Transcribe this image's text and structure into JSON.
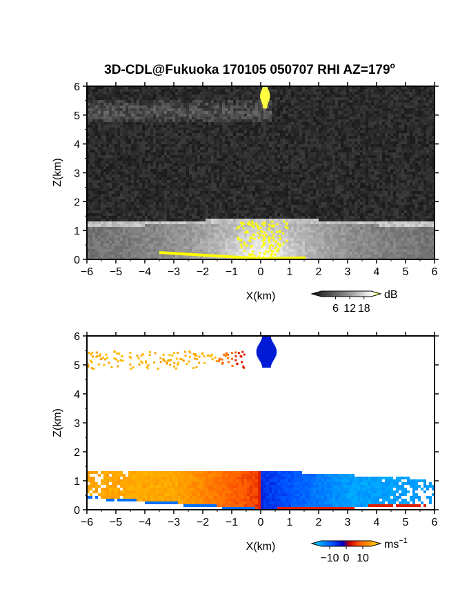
{
  "title": "3D-CDL@Fukuoka 170105 050707 RHI AZ=179",
  "title_superscript": "o",
  "chart_data": [
    {
      "type": "heatmap",
      "name": "backscatter",
      "xlabel": "X(km)",
      "ylabel": "Z(km)",
      "xlim": [
        -6,
        6
      ],
      "ylim": [
        0,
        6
      ],
      "xticks": [
        "-6",
        "-5",
        "-4",
        "-3",
        "-2",
        "-1",
        "0",
        "1",
        "2",
        "3",
        "4",
        "5",
        "6"
      ],
      "yticks": [
        "0",
        "1",
        "2",
        "3",
        "4",
        "5",
        "6"
      ],
      "colorbar": {
        "unit": "dB",
        "ticks": [
          "6",
          "12",
          "18"
        ],
        "values": [
          6,
          12,
          18
        ],
        "range": [
          0,
          21
        ]
      },
      "features": [
        {
          "kind": "boundary_layer",
          "top_km": 1.45,
          "x_range": [
            -6,
            6
          ]
        },
        {
          "kind": "cloud_layer",
          "z_range": [
            4.8,
            5.6
          ],
          "x_range": [
            -6,
            0.2
          ]
        },
        {
          "kind": "strong_echo",
          "x_km": 0.15,
          "z_range": [
            5.3,
            6.0
          ]
        },
        {
          "kind": "surface_echo",
          "x_range": [
            -3.5,
            1.5
          ]
        }
      ]
    },
    {
      "type": "heatmap",
      "name": "doppler_velocity",
      "xlabel": "X(km)",
      "ylabel": "Z(km)",
      "xlim": [
        -6,
        6
      ],
      "ylim": [
        0,
        6
      ],
      "xticks": [
        "-6",
        "-5",
        "-4",
        "-3",
        "-2",
        "-1",
        "0",
        "1",
        "2",
        "3",
        "4",
        "5",
        "6"
      ],
      "yticks": [
        "0",
        "1",
        "2",
        "3",
        "4",
        "5",
        "6"
      ],
      "colorbar": {
        "unit": "ms",
        "unit_superscript": "−1",
        "ticks": [
          "−10",
          "0",
          "10"
        ],
        "values": [
          -10,
          0,
          10
        ],
        "range": [
          -15,
          15
        ]
      },
      "features": [
        {
          "kind": "boundary_layer",
          "top_km": 1.4,
          "left_velocity": 10,
          "right_velocity": -10
        },
        {
          "kind": "cloud_patches",
          "z_range": [
            4.9,
            5.5
          ],
          "x_range": [
            -6,
            -0.6
          ]
        },
        {
          "kind": "receding_core",
          "x_km": 0.2,
          "z_range": [
            5.0,
            6.0
          ]
        }
      ]
    }
  ]
}
